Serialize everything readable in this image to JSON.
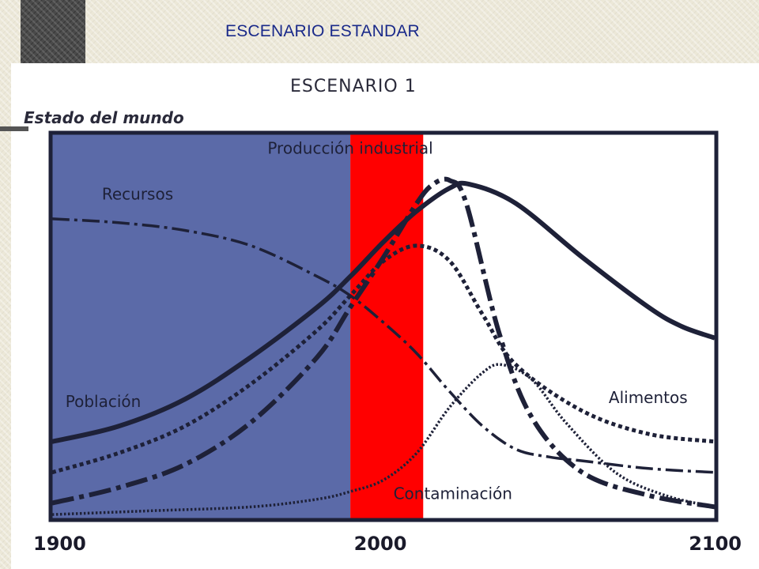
{
  "slide": {
    "title": "ESCENARIO ESTANDAR"
  },
  "colors": {
    "past_shade": "#5b6aa8",
    "highlight_band": "#ff0000",
    "curves": "#1e2138"
  },
  "chart_data": {
    "type": "line",
    "title": "ESCENARIO 1",
    "ylabel": "Estado del mundo",
    "xlabel": "",
    "xlim": [
      1900,
      2100
    ],
    "ylim": [
      0,
      100
    ],
    "x_ticks": [
      "1900",
      "2000",
      "2100"
    ],
    "shaded_regions": [
      {
        "from": 1900,
        "to": 1990,
        "color": "#5b6aa8"
      },
      {
        "from": 1990,
        "to": 2012,
        "color": "#ff0000"
      }
    ],
    "series": [
      {
        "name": "Recursos",
        "style": "dash-dot",
        "label_x": 1915,
        "label_y": 83,
        "points": [
          [
            1900,
            78
          ],
          [
            1920,
            77
          ],
          [
            1940,
            75
          ],
          [
            1960,
            71
          ],
          [
            1980,
            63
          ],
          [
            1990,
            58
          ],
          [
            2000,
            51
          ],
          [
            2010,
            43
          ],
          [
            2020,
            33
          ],
          [
            2030,
            24
          ],
          [
            2040,
            18
          ],
          [
            2050,
            16
          ],
          [
            2060,
            15
          ],
          [
            2080,
            13
          ],
          [
            2100,
            12
          ]
        ]
      },
      {
        "name": "Población",
        "style": "solid",
        "label_x": 1904,
        "label_y": 29,
        "points": [
          [
            1900,
            20
          ],
          [
            1920,
            24
          ],
          [
            1940,
            31
          ],
          [
            1960,
            42
          ],
          [
            1980,
            55
          ],
          [
            1990,
            63
          ],
          [
            2000,
            72
          ],
          [
            2010,
            80
          ],
          [
            2020,
            86
          ],
          [
            2026,
            87
          ],
          [
            2040,
            82
          ],
          [
            2060,
            68
          ],
          [
            2080,
            55
          ],
          [
            2090,
            50
          ],
          [
            2100,
            47
          ]
        ]
      },
      {
        "name": "Alimentos",
        "style": "dotted",
        "label_x": 2068,
        "label_y": 30,
        "points": [
          [
            1900,
            12
          ],
          [
            1920,
            17
          ],
          [
            1940,
            24
          ],
          [
            1960,
            35
          ],
          [
            1980,
            49
          ],
          [
            1990,
            58
          ],
          [
            2000,
            67
          ],
          [
            2010,
            71
          ],
          [
            2020,
            67
          ],
          [
            2030,
            53
          ],
          [
            2040,
            40
          ],
          [
            2060,
            28
          ],
          [
            2080,
            22
          ],
          [
            2100,
            20
          ]
        ]
      },
      {
        "name": "Producción industrial",
        "style": "long-dash-dot",
        "label_x": 1965,
        "label_y": 95,
        "points": [
          [
            1900,
            4
          ],
          [
            1920,
            8
          ],
          [
            1940,
            14
          ],
          [
            1960,
            25
          ],
          [
            1980,
            42
          ],
          [
            1990,
            55
          ],
          [
            2000,
            68
          ],
          [
            2010,
            82
          ],
          [
            2015,
            87
          ],
          [
            2020,
            88
          ],
          [
            2025,
            82
          ],
          [
            2035,
            48
          ],
          [
            2045,
            26
          ],
          [
            2060,
            12
          ],
          [
            2080,
            6
          ],
          [
            2100,
            3
          ]
        ]
      },
      {
        "name": "Contaminación",
        "style": "fine-dotted",
        "label_x": 2003,
        "label_y": 5,
        "points": [
          [
            1900,
            1
          ],
          [
            1930,
            2
          ],
          [
            1960,
            3
          ],
          [
            1980,
            5
          ],
          [
            1990,
            7
          ],
          [
            2000,
            10
          ],
          [
            2010,
            17
          ],
          [
            2020,
            29
          ],
          [
            2030,
            38
          ],
          [
            2036,
            40
          ],
          [
            2045,
            36
          ],
          [
            2055,
            25
          ],
          [
            2070,
            12
          ],
          [
            2085,
            6
          ],
          [
            2100,
            3
          ]
        ]
      }
    ]
  }
}
